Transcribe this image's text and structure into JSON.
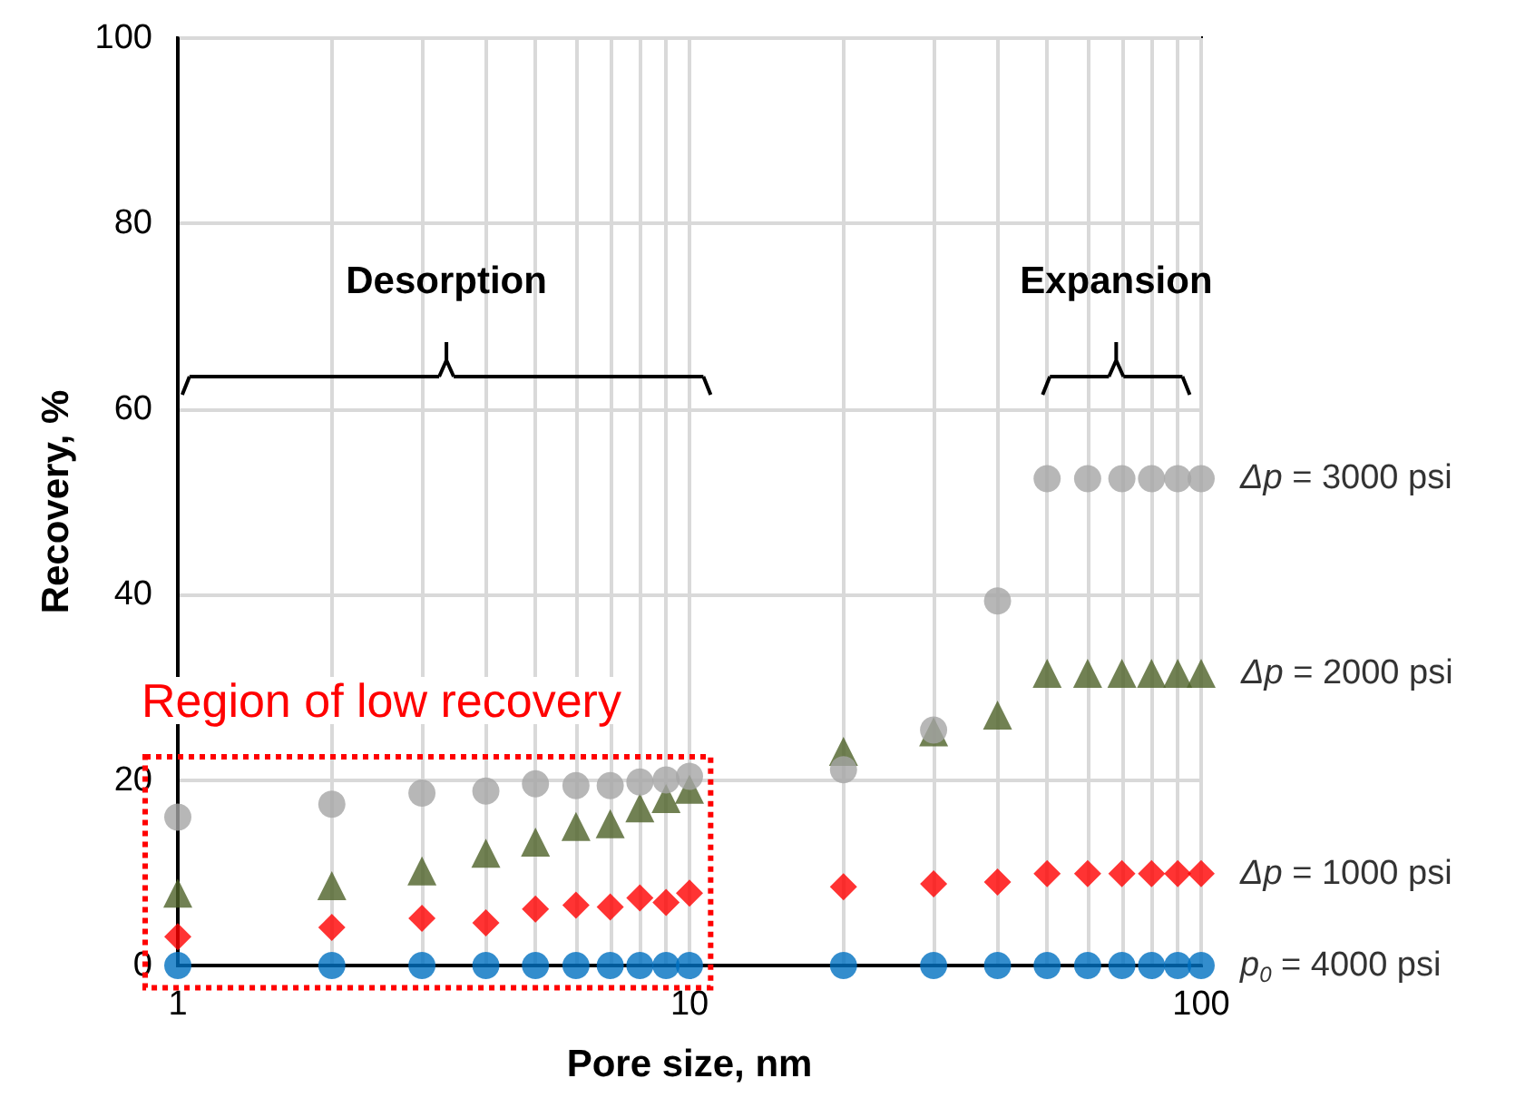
{
  "chart_data": {
    "type": "scatter",
    "xlabel": "Pore size, nm",
    "ylabel": "Recovery, %",
    "log": "x",
    "grid": true,
    "legend": false,
    "x": [
      1,
      2,
      3,
      4,
      5,
      6,
      7,
      8,
      9,
      10,
      20,
      30,
      40,
      50,
      60,
      70,
      80,
      90,
      100
    ],
    "xlim": [
      1,
      100
    ],
    "xticks": [
      1,
      {
        "value": 2,
        "label": null
      },
      {
        "value": 3,
        "label": null
      },
      {
        "value": 4,
        "label": null
      },
      {
        "value": 5,
        "label": null
      },
      {
        "value": 6,
        "label": null
      },
      {
        "value": 7,
        "label": null
      },
      {
        "value": 8,
        "label": null
      },
      {
        "value": 9,
        "label": null
      },
      10,
      {
        "value": 20,
        "label": null
      },
      {
        "value": 30,
        "label": null
      },
      {
        "value": 40,
        "label": null
      },
      {
        "value": 50,
        "label": null
      },
      {
        "value": 60,
        "label": null
      },
      {
        "value": 70,
        "label": null
      },
      {
        "value": 80,
        "label": null
      },
      {
        "value": 90,
        "label": null
      },
      100
    ],
    "ylim": [
      0,
      100
    ],
    "yticks": [
      0,
      20,
      40,
      60,
      80,
      100
    ],
    "series": [
      {
        "name": "Δp = 3000 psi",
        "color": "#a5a5a5",
        "marker": "circle",
        "values": [
          16,
          17.4,
          18.6,
          18.8,
          19.6,
          19.4,
          19.4,
          19.8,
          20,
          20.4,
          21.1,
          25.4,
          39.3,
          52.5,
          52.5,
          52.5,
          52.5,
          52.5,
          52.5
        ]
      },
      {
        "name": "Δp = 2000 psi",
        "color": "#4e6228",
        "marker": "triangle",
        "values": [
          7.8,
          8.6,
          10.2,
          12.1,
          13.3,
          15,
          15.3,
          17,
          18,
          19,
          23.1,
          25.2,
          27,
          31.5,
          31.5,
          31.5,
          31.5,
          31.5,
          31.5
        ]
      },
      {
        "name": "Δp = 1000 psi",
        "color": "#ff0000",
        "marker": "diamond",
        "values": [
          3.1,
          4.1,
          5.1,
          4.6,
          6.1,
          6.5,
          6.3,
          7.3,
          6.8,
          7.8,
          8.5,
          8.8,
          9,
          9.9,
          9.9,
          9.9,
          9.9,
          9.9,
          9.9
        ]
      },
      {
        "name": "p$_{0}$ = 4000 psi",
        "color": "#0070c0",
        "marker": "circle",
        "values": [
          0,
          0,
          0,
          0,
          0,
          0,
          0,
          0,
          0,
          0,
          0,
          0,
          0,
          0,
          0,
          0,
          0,
          0,
          0
        ]
      }
    ],
    "annotations": [
      "Desorption",
      "Expansion",
      "Region of low recovery"
    ]
  }
}
